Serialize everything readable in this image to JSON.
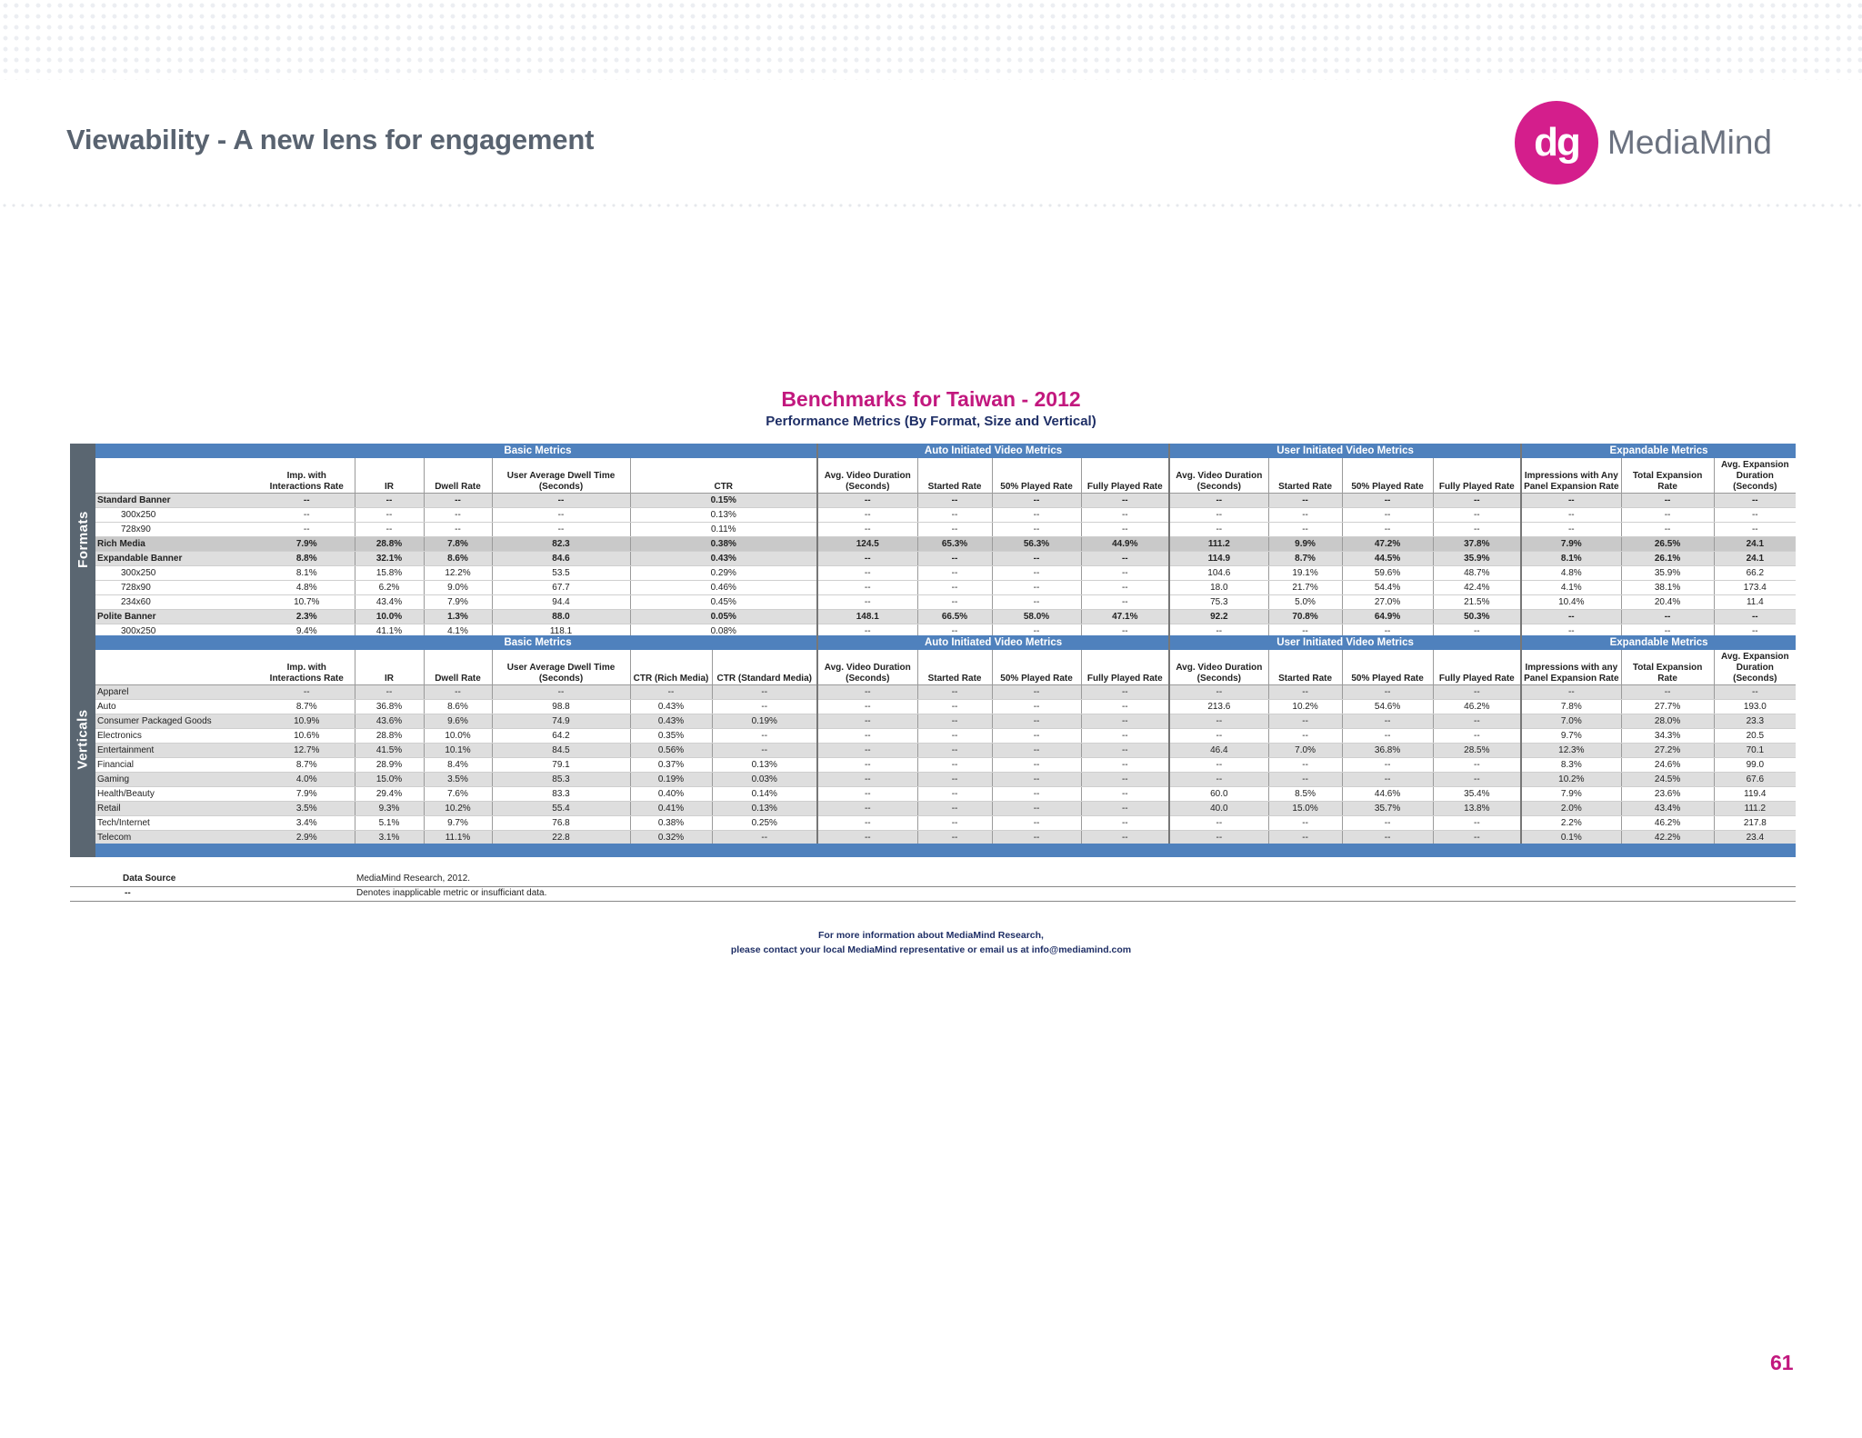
{
  "header": {
    "title": "Viewability - A new lens for engagement",
    "logo_mark": "dg",
    "logo_text": "MediaMind"
  },
  "page_title": "Benchmarks for Taiwan - 2012",
  "page_subtitle": "Performance Metrics  (By Format, Size and Vertical)",
  "group_headers": [
    "Basic Metrics",
    "Auto Initiated Video Metrics",
    "User Initiated Video Metrics",
    "Expandable Metrics"
  ],
  "formats": {
    "side_label": "Formats",
    "columns": [
      "",
      "Imp. with Interactions Rate",
      "IR",
      "Dwell Rate",
      "User Average Dwell Time (Seconds)",
      "CTR",
      "Avg. Video Duration (Seconds)",
      "Started Rate",
      "50% Played Rate",
      "Fully Played Rate",
      "Avg. Video Duration (Seconds)",
      "Started Rate",
      "50% Played Rate",
      "Fully Played Rate",
      "Impressions with Any Panel Expansion Rate",
      "Total Expansion Rate",
      "Avg. Expansion Duration (Seconds)"
    ],
    "rows": [
      {
        "label": "Standard Banner",
        "style": "grey",
        "bold": true,
        "indent": false,
        "cells": [
          "--",
          "--",
          "--",
          "--",
          "0.15%",
          "--",
          "--",
          "--",
          "--",
          "--",
          "--",
          "--",
          "--",
          "--",
          "--",
          "--"
        ]
      },
      {
        "label": "300x250",
        "style": "white",
        "bold": false,
        "indent": true,
        "cells": [
          "--",
          "--",
          "--",
          "--",
          "0.13%",
          "--",
          "--",
          "--",
          "--",
          "--",
          "--",
          "--",
          "--",
          "--",
          "--",
          "--"
        ]
      },
      {
        "label": "728x90",
        "style": "white",
        "bold": false,
        "indent": true,
        "cells": [
          "--",
          "--",
          "--",
          "--",
          "0.11%",
          "--",
          "--",
          "--",
          "--",
          "--",
          "--",
          "--",
          "--",
          "--",
          "--",
          "--"
        ]
      },
      {
        "label": "Rich Media",
        "style": "dark",
        "bold": true,
        "indent": false,
        "cells": [
          "7.9%",
          "28.8%",
          "7.8%",
          "82.3",
          "0.38%",
          "124.5",
          "65.3%",
          "56.3%",
          "44.9%",
          "111.2",
          "9.9%",
          "47.2%",
          "37.8%",
          "7.9%",
          "26.5%",
          "24.1"
        ]
      },
      {
        "label": "Expandable Banner",
        "style": "grey",
        "bold": true,
        "indent": false,
        "cells": [
          "8.8%",
          "32.1%",
          "8.6%",
          "84.6",
          "0.43%",
          "--",
          "--",
          "--",
          "--",
          "114.9",
          "8.7%",
          "44.5%",
          "35.9%",
          "8.1%",
          "26.1%",
          "24.1"
        ]
      },
      {
        "label": "300x250",
        "style": "white",
        "bold": false,
        "indent": true,
        "cells": [
          "8.1%",
          "15.8%",
          "12.2%",
          "53.5",
          "0.29%",
          "--",
          "--",
          "--",
          "--",
          "104.6",
          "19.1%",
          "59.6%",
          "48.7%",
          "4.8%",
          "35.9%",
          "66.2"
        ]
      },
      {
        "label": "728x90",
        "style": "white",
        "bold": false,
        "indent": true,
        "cells": [
          "4.8%",
          "6.2%",
          "9.0%",
          "67.7",
          "0.46%",
          "--",
          "--",
          "--",
          "--",
          "18.0",
          "21.7%",
          "54.4%",
          "42.4%",
          "4.1%",
          "38.1%",
          "173.4"
        ]
      },
      {
        "label": "234x60",
        "style": "white",
        "bold": false,
        "indent": true,
        "cells": [
          "10.7%",
          "43.4%",
          "7.9%",
          "94.4",
          "0.45%",
          "--",
          "--",
          "--",
          "--",
          "75.3",
          "5.0%",
          "27.0%",
          "21.5%",
          "10.4%",
          "20.4%",
          "11.4"
        ]
      },
      {
        "label": "Polite Banner",
        "style": "grey",
        "bold": true,
        "indent": false,
        "cells": [
          "2.3%",
          "10.0%",
          "1.3%",
          "88.0",
          "0.05%",
          "148.1",
          "66.5%",
          "58.0%",
          "47.1%",
          "92.2",
          "70.8%",
          "64.9%",
          "50.3%",
          "--",
          "--",
          "--"
        ]
      },
      {
        "label": "300x250",
        "style": "white",
        "bold": false,
        "indent": true,
        "cells": [
          "9.4%",
          "41.1%",
          "4.1%",
          "118.1",
          "0.08%",
          "--",
          "--",
          "--",
          "--",
          "--",
          "--",
          "--",
          "--",
          "--",
          "--",
          "--"
        ]
      }
    ]
  },
  "verticals": {
    "side_label": "Verticals",
    "columns": [
      "",
      "Imp. with Interactions Rate",
      "IR",
      "Dwell Rate",
      "User Average Dwell Time (Seconds)",
      "CTR (Rich Media)",
      "CTR (Standard Media)",
      "Avg. Video Duration (Seconds)",
      "Started Rate",
      "50% Played Rate",
      "Fully Played Rate",
      "Avg. Video Duration (Seconds)",
      "Started Rate",
      "50% Played Rate",
      "Fully Played Rate",
      "Impressions with any Panel Expansion Rate",
      "Total Expansion Rate",
      "Avg. Expansion Duration (Seconds)"
    ],
    "rows": [
      {
        "label": "Apparel",
        "style": "grey",
        "cells": [
          "--",
          "--",
          "--",
          "--",
          "--",
          "--",
          "--",
          "--",
          "--",
          "--",
          "--",
          "--",
          "--",
          "--",
          "--",
          "--",
          "--"
        ]
      },
      {
        "label": "Auto",
        "style": "white",
        "cells": [
          "8.7%",
          "36.8%",
          "8.6%",
          "98.8",
          "0.43%",
          "--",
          "--",
          "--",
          "--",
          "--",
          "213.6",
          "10.2%",
          "54.6%",
          "46.2%",
          "7.8%",
          "27.7%",
          "193.0"
        ]
      },
      {
        "label": "Consumer Packaged Goods",
        "style": "grey",
        "cells": [
          "10.9%",
          "43.6%",
          "9.6%",
          "74.9",
          "0.43%",
          "0.19%",
          "--",
          "--",
          "--",
          "--",
          "--",
          "--",
          "--",
          "--",
          "7.0%",
          "28.0%",
          "23.3"
        ]
      },
      {
        "label": "Electronics",
        "style": "white",
        "cells": [
          "10.6%",
          "28.8%",
          "10.0%",
          "64.2",
          "0.35%",
          "--",
          "--",
          "--",
          "--",
          "--",
          "--",
          "--",
          "--",
          "--",
          "9.7%",
          "34.3%",
          "20.5"
        ]
      },
      {
        "label": "Entertainment",
        "style": "grey",
        "cells": [
          "12.7%",
          "41.5%",
          "10.1%",
          "84.5",
          "0.56%",
          "--",
          "--",
          "--",
          "--",
          "--",
          "46.4",
          "7.0%",
          "36.8%",
          "28.5%",
          "12.3%",
          "27.2%",
          "70.1"
        ]
      },
      {
        "label": "Financial",
        "style": "white",
        "cells": [
          "8.7%",
          "28.9%",
          "8.4%",
          "79.1",
          "0.37%",
          "0.13%",
          "--",
          "--",
          "--",
          "--",
          "--",
          "--",
          "--",
          "--",
          "8.3%",
          "24.6%",
          "99.0"
        ]
      },
      {
        "label": "Gaming",
        "style": "grey",
        "cells": [
          "4.0%",
          "15.0%",
          "3.5%",
          "85.3",
          "0.19%",
          "0.03%",
          "--",
          "--",
          "--",
          "--",
          "--",
          "--",
          "--",
          "--",
          "10.2%",
          "24.5%",
          "67.6"
        ]
      },
      {
        "label": "Health/Beauty",
        "style": "white",
        "cells": [
          "7.9%",
          "29.4%",
          "7.6%",
          "83.3",
          "0.40%",
          "0.14%",
          "--",
          "--",
          "--",
          "--",
          "60.0",
          "8.5%",
          "44.6%",
          "35.4%",
          "7.9%",
          "23.6%",
          "119.4"
        ]
      },
      {
        "label": "Retail",
        "style": "grey",
        "cells": [
          "3.5%",
          "9.3%",
          "10.2%",
          "55.4",
          "0.41%",
          "0.13%",
          "--",
          "--",
          "--",
          "--",
          "40.0",
          "15.0%",
          "35.7%",
          "13.8%",
          "2.0%",
          "43.4%",
          "111.2"
        ]
      },
      {
        "label": "Tech/Internet",
        "style": "white",
        "cells": [
          "3.4%",
          "5.1%",
          "9.7%",
          "76.8",
          "0.38%",
          "0.25%",
          "--",
          "--",
          "--",
          "--",
          "--",
          "--",
          "--",
          "--",
          "2.2%",
          "46.2%",
          "217.8"
        ]
      },
      {
        "label": "Telecom",
        "style": "grey",
        "cells": [
          "2.9%",
          "3.1%",
          "11.1%",
          "22.8",
          "0.32%",
          "--",
          "--",
          "--",
          "--",
          "--",
          "--",
          "--",
          "--",
          "--",
          "0.1%",
          "42.2%",
          "23.4"
        ]
      }
    ]
  },
  "data_source": {
    "label": "Data Source",
    "value": "MediaMind Research, 2012.",
    "legend_key": "--",
    "legend_value": "Denotes inapplicable metric or insufficiant data."
  },
  "footer": {
    "line1": "For more information about MediaMind Research,",
    "line2": "please contact your local MediaMind representative or email us at info@mediamind.com"
  },
  "page_number": "61",
  "colors": {
    "accent": "#c2187e",
    "header_blue": "#4f81bd",
    "side_grey": "#5a6671",
    "navy": "#1f2f66"
  }
}
